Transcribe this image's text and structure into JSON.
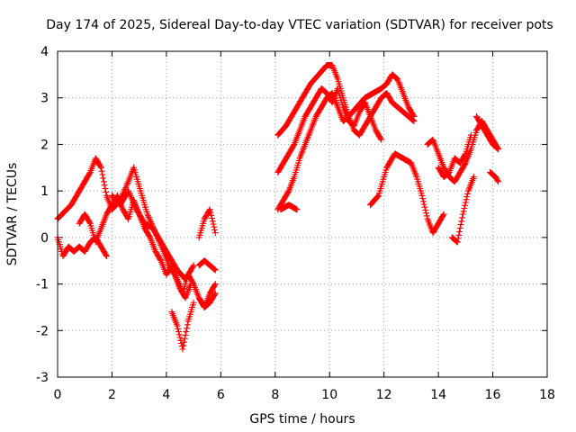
{
  "chart_data": {
    "type": "scatter",
    "title": "Day 174 of 2025, Sidereal Day-to-day VTEC variation (SDTVAR) for receiver pots",
    "xlabel": "GPS time / hours",
    "ylabel": "SDTVAR / TECUs",
    "xlim": [
      0,
      18
    ],
    "ylim": [
      -3,
      4
    ],
    "xticks": [
      "0",
      "2",
      "4",
      "6",
      "8",
      "10",
      "12",
      "14",
      "16",
      "18"
    ],
    "yticks": [
      "-3",
      "-2",
      "-1",
      "0",
      "1",
      "2",
      "3",
      "4"
    ],
    "grid": true,
    "marker": "plus",
    "color": "#ff0000",
    "step_hours": 0.025,
    "series": [
      {
        "name": "trace-1",
        "x": [
          0.0,
          0.5,
          0.9,
          1.2,
          1.4,
          1.6,
          1.8,
          2.0,
          2.3,
          2.6,
          2.8,
          3.0,
          3.3,
          3.6,
          3.9,
          4.1,
          4.3,
          4.5,
          4.7,
          4.9
        ],
        "y": [
          0.4,
          0.7,
          1.1,
          1.4,
          1.7,
          1.5,
          0.9,
          0.6,
          0.8,
          1.2,
          1.5,
          1.1,
          0.5,
          0.1,
          -0.3,
          -0.6,
          -0.8,
          -1.1,
          -1.3,
          -1.0
        ]
      },
      {
        "name": "trace-2",
        "x": [
          0.0,
          0.2,
          0.4,
          0.6,
          0.8,
          1.0,
          1.2,
          1.4,
          1.6,
          1.8
        ],
        "y": [
          0.0,
          -0.4,
          -0.2,
          -0.3,
          -0.2,
          -0.3,
          -0.1,
          0.0,
          -0.2,
          -0.4
        ]
      },
      {
        "name": "trace-3",
        "x": [
          0.8,
          1.0,
          1.2,
          1.4,
          1.6,
          1.8,
          2.0,
          2.2,
          2.4,
          2.6,
          2.8,
          3.0,
          3.2,
          3.4,
          3.6,
          3.8,
          4.0,
          4.2,
          4.4,
          4.6,
          4.8,
          5.0,
          5.2,
          5.4,
          5.6,
          5.8
        ],
        "y": [
          0.3,
          0.5,
          0.3,
          -0.1,
          0.2,
          0.5,
          0.7,
          0.9,
          0.6,
          0.4,
          0.8,
          0.5,
          0.2,
          0.0,
          -0.3,
          -0.5,
          -0.8,
          -0.6,
          -0.9,
          -1.2,
          -0.8,
          -1.0,
          -1.3,
          -1.5,
          -1.2,
          -1.0
        ]
      },
      {
        "name": "trace-4",
        "x": [
          2.0,
          2.3,
          2.6,
          2.9,
          3.2,
          3.5,
          3.8,
          4.1,
          4.4,
          4.7,
          5.0
        ],
        "y": [
          0.9,
          0.7,
          1.0,
          0.6,
          0.3,
          0.2,
          -0.1,
          -0.4,
          -0.7,
          -0.9,
          -0.6
        ]
      },
      {
        "name": "trace-5",
        "x": [
          4.2,
          4.4,
          4.6,
          4.8,
          5.0
        ],
        "y": [
          -1.6,
          -1.9,
          -2.4,
          -1.8,
          -1.4
        ]
      },
      {
        "name": "trace-6",
        "x": [
          5.2,
          5.4,
          5.6,
          5.8
        ],
        "y": [
          0.0,
          0.4,
          0.6,
          0.1
        ]
      },
      {
        "name": "trace-7",
        "x": [
          5.2,
          5.4,
          5.6,
          5.8
        ],
        "y": [
          -0.6,
          -0.5,
          -0.6,
          -0.7
        ]
      },
      {
        "name": "trace-8",
        "x": [
          5.2,
          5.4,
          5.6,
          5.8
        ],
        "y": [
          -1.3,
          -1.5,
          -1.4,
          -1.2
        ]
      },
      {
        "name": "trace-9",
        "x": [
          8.1,
          8.4,
          8.7,
          9.0,
          9.3,
          9.6,
          9.9,
          10.1,
          10.3,
          10.5,
          10.7,
          11.0,
          11.3,
          11.6,
          11.9,
          12.1,
          12.3,
          12.5,
          12.7,
          12.9,
          13.1
        ],
        "y": [
          2.2,
          2.4,
          2.7,
          3.0,
          3.3,
          3.5,
          3.7,
          3.7,
          3.4,
          3.0,
          2.6,
          2.8,
          3.0,
          3.1,
          3.2,
          3.3,
          3.5,
          3.4,
          3.1,
          2.8,
          2.6
        ]
      },
      {
        "name": "trace-10",
        "x": [
          8.1,
          8.3,
          8.5,
          8.7,
          8.9,
          9.1,
          9.3,
          9.5,
          9.7,
          9.9,
          10.1,
          10.3,
          10.5,
          10.7,
          10.9,
          11.1,
          11.3,
          11.5,
          11.7,
          11.9,
          12.1,
          12.3,
          12.5,
          12.7,
          12.9,
          13.1
        ],
        "y": [
          1.4,
          1.6,
          1.8,
          2.0,
          2.3,
          2.6,
          2.8,
          3.0,
          3.2,
          3.1,
          2.9,
          3.2,
          2.8,
          2.5,
          2.4,
          2.7,
          2.9,
          2.6,
          2.8,
          3.0,
          3.1,
          2.9,
          2.8,
          2.7,
          2.6,
          2.5
        ]
      },
      {
        "name": "trace-11",
        "x": [
          8.1,
          8.3,
          8.5,
          8.7,
          8.9,
          9.1,
          9.3,
          9.5,
          9.7,
          9.9,
          10.1,
          10.3,
          10.5,
          10.7,
          10.9,
          11.1,
          11.3,
          11.5,
          11.7,
          11.9
        ],
        "y": [
          0.6,
          0.8,
          1.0,
          1.3,
          1.7,
          2.0,
          2.3,
          2.6,
          2.8,
          3.0,
          3.1,
          2.8,
          2.5,
          2.6,
          2.3,
          2.2,
          2.4,
          2.6,
          2.3,
          2.1
        ]
      },
      {
        "name": "trace-12",
        "x": [
          8.2,
          8.5,
          8.8
        ],
        "y": [
          0.6,
          0.7,
          0.6
        ]
      },
      {
        "name": "trace-13",
        "x": [
          11.5,
          11.8,
          12.1,
          12.4,
          12.7,
          13.0,
          13.2,
          13.4,
          13.6,
          13.8,
          14.0,
          14.2
        ],
        "y": [
          0.7,
          0.9,
          1.5,
          1.8,
          1.7,
          1.6,
          1.3,
          0.9,
          0.4,
          0.1,
          0.3,
          0.5
        ]
      },
      {
        "name": "trace-14",
        "x": [
          13.6,
          13.8,
          14.0,
          14.2,
          14.4,
          14.6,
          14.8,
          15.0,
          15.2,
          15.4,
          15.6,
          15.8,
          16.0,
          16.2
        ],
        "y": [
          2.0,
          2.1,
          1.8,
          1.5,
          1.3,
          1.2,
          1.4,
          1.6,
          1.9,
          2.3,
          2.5,
          2.3,
          2.1,
          1.9
        ]
      },
      {
        "name": "trace-15",
        "x": [
          14.0,
          14.2,
          14.4,
          14.6,
          14.8,
          15.0,
          15.2
        ],
        "y": [
          1.5,
          1.3,
          1.4,
          1.7,
          1.6,
          1.8,
          2.2
        ]
      },
      {
        "name": "trace-16",
        "x": [
          14.5,
          14.7,
          14.9,
          15.1,
          15.3
        ],
        "y": [
          0.0,
          -0.1,
          0.5,
          1.0,
          1.3
        ]
      },
      {
        "name": "trace-17",
        "x": [
          15.4,
          15.6,
          15.8,
          16.0,
          16.2
        ],
        "y": [
          2.6,
          2.4,
          2.2,
          2.0,
          1.9
        ]
      },
      {
        "name": "trace-18",
        "x": [
          15.9,
          16.1,
          16.2
        ],
        "y": [
          1.4,
          1.3,
          1.2
        ]
      }
    ]
  }
}
